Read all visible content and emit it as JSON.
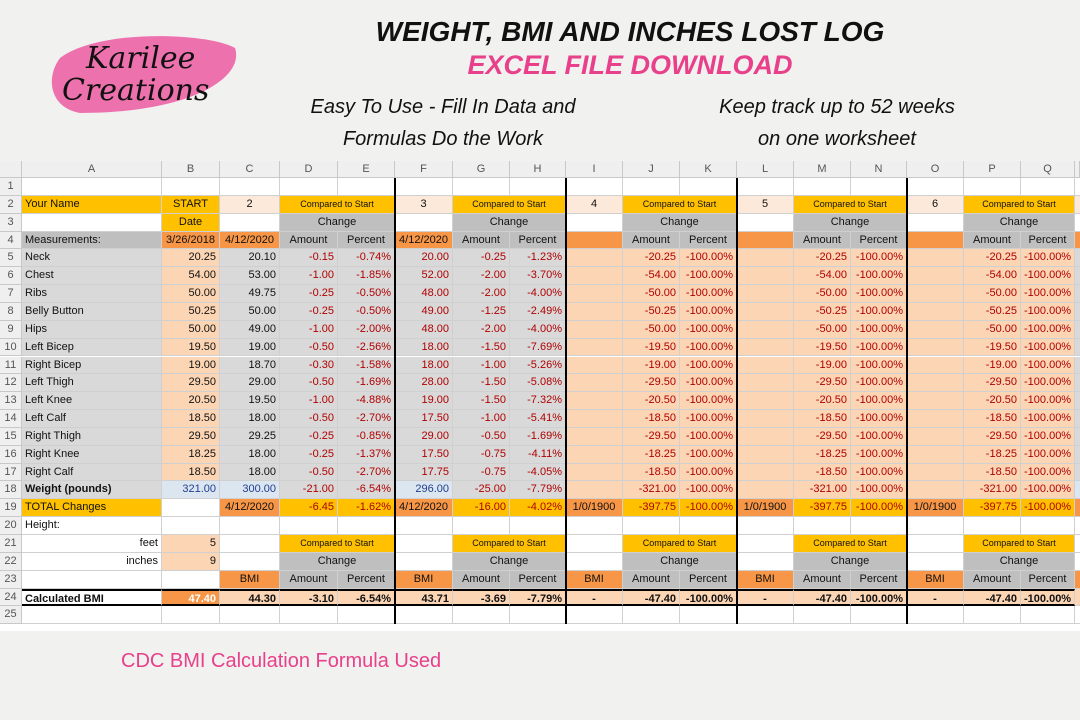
{
  "logo": {
    "line1": "Karilee",
    "line2": "Creations"
  },
  "header": {
    "title": "WEIGHT, BMI AND INCHES LOST LOG",
    "subtitle": "EXCEL FILE DOWNLOAD",
    "tagline_left": [
      "Easy To Use - Fill In Data and",
      "Formulas Do the Work"
    ],
    "tagline_right": [
      "Keep track up to 52 weeks",
      "on one worksheet"
    ]
  },
  "sheet": {
    "columns": [
      "A",
      "B",
      "C",
      "D",
      "E",
      "F",
      "G",
      "H",
      "I",
      "J",
      "K",
      "L",
      "M",
      "N",
      "O",
      "P",
      "Q"
    ],
    "row_numbers": [
      1,
      2,
      3,
      4,
      5,
      6,
      7,
      8,
      9,
      10,
      11,
      12,
      13,
      14,
      15,
      16,
      17,
      18,
      19,
      20,
      21,
      22,
      23,
      24,
      25
    ],
    "rows": [
      [
        null,
        null,
        null,
        null,
        null,
        null,
        null,
        null,
        null,
        null,
        null,
        null,
        null,
        null,
        null,
        null,
        null
      ],
      [
        "Your Name",
        "START",
        "2",
        "Compared to Start",
        null,
        "3",
        "Compared to Start",
        null,
        "4",
        "Compared to Start",
        null,
        "5",
        "Compared to Start",
        null,
        "6",
        "Compared to Start",
        null
      ],
      [
        null,
        "Date",
        null,
        "Change",
        null,
        null,
        "Change",
        null,
        null,
        "Change",
        null,
        null,
        "Change",
        null,
        null,
        "Change",
        null
      ],
      [
        "Measurements:",
        "3/26/2018",
        "4/12/2020",
        "Amount",
        "Percent",
        "4/12/2020",
        "Amount",
        "Percent",
        null,
        "Amount",
        "Percent",
        null,
        "Amount",
        "Percent",
        null,
        "Amount",
        "Percent"
      ],
      [
        "Neck",
        "20.25",
        "20.10",
        "-0.15",
        "-0.74%",
        "20.00",
        "-0.25",
        "-1.23%",
        null,
        "-20.25",
        "-100.00%",
        null,
        "-20.25",
        "-100.00%",
        null,
        "-20.25",
        "-100.00%"
      ],
      [
        "Chest",
        "54.00",
        "53.00",
        "-1.00",
        "-1.85%",
        "52.00",
        "-2.00",
        "-3.70%",
        null,
        "-54.00",
        "-100.00%",
        null,
        "-54.00",
        "-100.00%",
        null,
        "-54.00",
        "-100.00%"
      ],
      [
        "Ribs",
        "50.00",
        "49.75",
        "-0.25",
        "-0.50%",
        "48.00",
        "-2.00",
        "-4.00%",
        null,
        "-50.00",
        "-100.00%",
        null,
        "-50.00",
        "-100.00%",
        null,
        "-50.00",
        "-100.00%"
      ],
      [
        "Belly Button",
        "50.25",
        "50.00",
        "-0.25",
        "-0.50%",
        "49.00",
        "-1.25",
        "-2.49%",
        null,
        "-50.25",
        "-100.00%",
        null,
        "-50.25",
        "-100.00%",
        null,
        "-50.25",
        "-100.00%"
      ],
      [
        "Hips",
        "50.00",
        "49.00",
        "-1.00",
        "-2.00%",
        "48.00",
        "-2.00",
        "-4.00%",
        null,
        "-50.00",
        "-100.00%",
        null,
        "-50.00",
        "-100.00%",
        null,
        "-50.00",
        "-100.00%"
      ],
      [
        "Left Bicep",
        "19.50",
        "19.00",
        "-0.50",
        "-2.56%",
        "18.00",
        "-1.50",
        "-7.69%",
        null,
        "-19.50",
        "-100.00%",
        null,
        "-19.50",
        "-100.00%",
        null,
        "-19.50",
        "-100.00%"
      ],
      [
        "Right Bicep",
        "19.00",
        "18.70",
        "-0.30",
        "-1.58%",
        "18.00",
        "-1.00",
        "-5.26%",
        null,
        "-19.00",
        "-100.00%",
        null,
        "-19.00",
        "-100.00%",
        null,
        "-19.00",
        "-100.00%"
      ],
      [
        "Left Thigh",
        "29.50",
        "29.00",
        "-0.50",
        "-1.69%",
        "28.00",
        "-1.50",
        "-5.08%",
        null,
        "-29.50",
        "-100.00%",
        null,
        "-29.50",
        "-100.00%",
        null,
        "-29.50",
        "-100.00%"
      ],
      [
        "Left Knee",
        "20.50",
        "19.50",
        "-1.00",
        "-4.88%",
        "19.00",
        "-1.50",
        "-7.32%",
        null,
        "-20.50",
        "-100.00%",
        null,
        "-20.50",
        "-100.00%",
        null,
        "-20.50",
        "-100.00%"
      ],
      [
        "Left Calf",
        "18.50",
        "18.00",
        "-0.50",
        "-2.70%",
        "17.50",
        "-1.00",
        "-5.41%",
        null,
        "-18.50",
        "-100.00%",
        null,
        "-18.50",
        "-100.00%",
        null,
        "-18.50",
        "-100.00%"
      ],
      [
        "Right Thigh",
        "29.50",
        "29.25",
        "-0.25",
        "-0.85%",
        "29.00",
        "-0.50",
        "-1.69%",
        null,
        "-29.50",
        "-100.00%",
        null,
        "-29.50",
        "-100.00%",
        null,
        "-29.50",
        "-100.00%"
      ],
      [
        "Right Knee",
        "18.25",
        "18.00",
        "-0.25",
        "-1.37%",
        "17.50",
        "-0.75",
        "-4.11%",
        null,
        "-18.25",
        "-100.00%",
        null,
        "-18.25",
        "-100.00%",
        null,
        "-18.25",
        "-100.00%"
      ],
      [
        "Right Calf",
        "18.50",
        "18.00",
        "-0.50",
        "-2.70%",
        "17.75",
        "-0.75",
        "-4.05%",
        null,
        "-18.50",
        "-100.00%",
        null,
        "-18.50",
        "-100.00%",
        null,
        "-18.50",
        "-100.00%"
      ],
      [
        "Weight (pounds)",
        "321.00",
        "300.00",
        "-21.00",
        "-6.54%",
        "296.00",
        "-25.00",
        "-7.79%",
        null,
        "-321.00",
        "-100.00%",
        null,
        "-321.00",
        "-100.00%",
        null,
        "-321.00",
        "-100.00%"
      ],
      [
        "TOTAL Changes",
        null,
        "4/12/2020",
        "-6.45",
        "-1.62%",
        "4/12/2020",
        "-16.00",
        "-4.02%",
        "1/0/1900",
        "-397.75",
        "-100.00%",
        "1/0/1900",
        "-397.75",
        "-100.00%",
        "1/0/1900",
        "-397.75",
        "-100.00%"
      ],
      [
        "Height:",
        null,
        null,
        null,
        null,
        null,
        null,
        null,
        null,
        null,
        null,
        null,
        null,
        null,
        null,
        null,
        null
      ],
      [
        "feet",
        "5",
        null,
        "Compared to Start",
        null,
        null,
        "Compared to Start",
        null,
        null,
        "Compared to Start",
        null,
        null,
        "Compared to Start",
        null,
        null,
        "Compared to Start",
        null
      ],
      [
        "inches",
        "9",
        null,
        "Change",
        null,
        null,
        "Change",
        null,
        null,
        "Change",
        null,
        null,
        "Change",
        null,
        null,
        "Change",
        null
      ],
      [
        null,
        null,
        "BMI",
        "Amount",
        "Percent",
        "BMI",
        "Amount",
        "Percent",
        "BMI",
        "Amount",
        "Percent",
        "BMI",
        "Amount",
        "Percent",
        "BMI",
        "Amount",
        "Percent"
      ],
      [
        "Calculated BMI",
        "47.40",
        "44.30",
        "-3.10",
        "-6.54%",
        "43.71",
        "-3.69",
        "-7.79%",
        "-",
        "-47.40",
        "-100.00%",
        "-",
        "-47.40",
        "-100.00%",
        "-",
        "-47.40",
        "-100.00%"
      ],
      [
        null,
        null,
        null,
        null,
        null,
        null,
        null,
        null,
        null,
        null,
        null,
        null,
        null,
        null,
        null,
        null,
        null
      ]
    ]
  },
  "footer": "CDC BMI Calculation Formula Used"
}
